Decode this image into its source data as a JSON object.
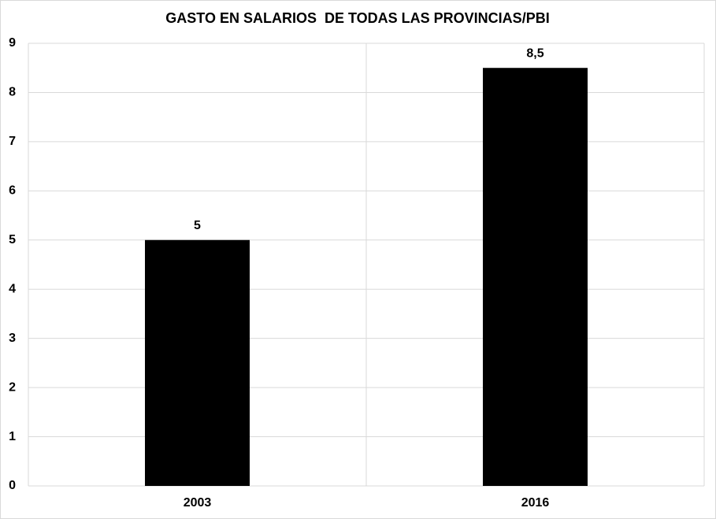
{
  "chart_data": {
    "type": "bar",
    "title": "GASTO EN SALARIOS  DE TODAS LAS PROVINCIAS/PBI",
    "categories": [
      "2003",
      "2016"
    ],
    "values": [
      5,
      8.5
    ],
    "value_labels": [
      "5",
      "8,5"
    ],
    "color": "#000000",
    "ylim": [
      0,
      9
    ],
    "yticks": [
      0,
      1,
      2,
      3,
      4,
      5,
      6,
      7,
      8,
      9
    ],
    "grid": true
  }
}
